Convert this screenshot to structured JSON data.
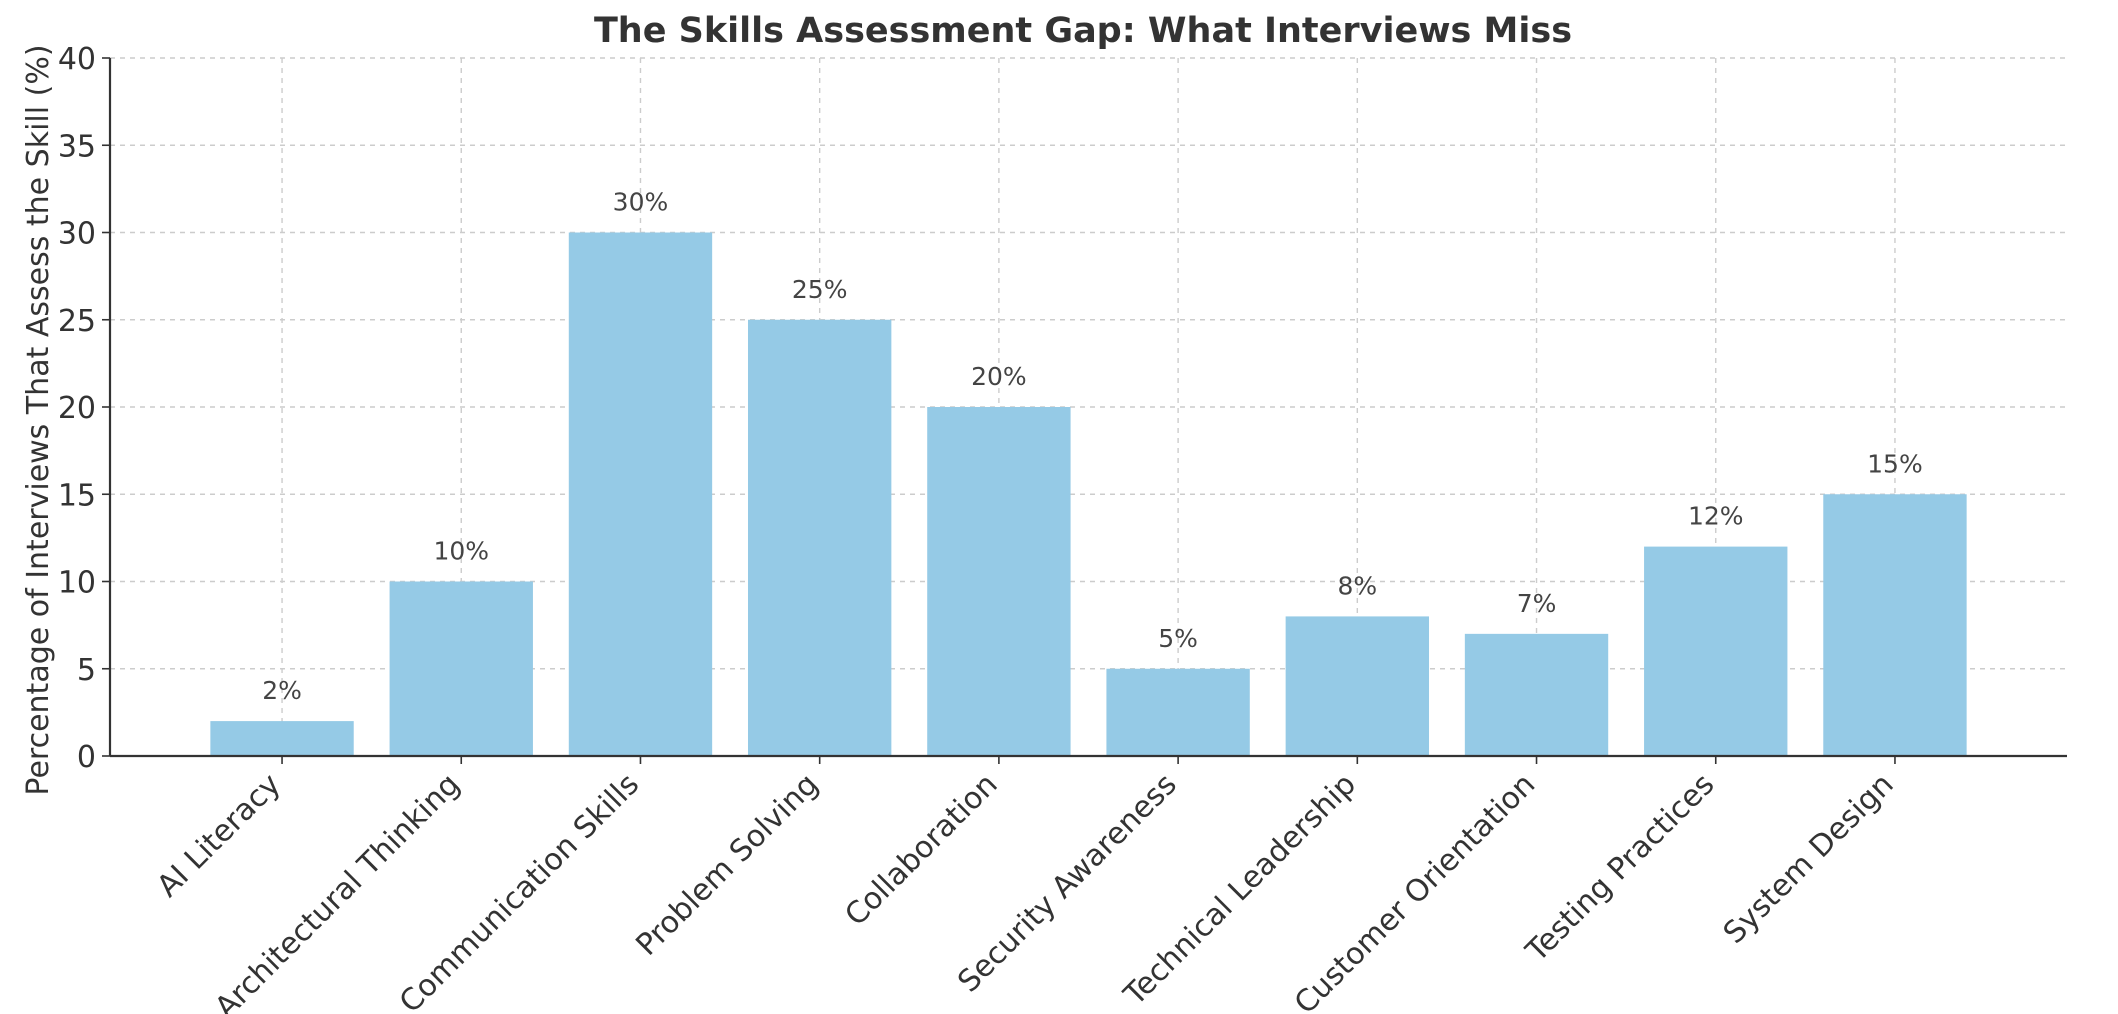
{
  "chart_data": {
    "type": "bar",
    "title": "The Skills Assessment Gap: What Interviews Miss",
    "xlabel": "",
    "ylabel": "Percentage of Interviews That Assess the Skill (%)",
    "categories": [
      "AI Literacy",
      "Architectural Thinking",
      "Communication Skills",
      "Problem Solving",
      "Collaboration",
      "Security Awareness",
      "Technical Leadership",
      "Customer Orientation",
      "Testing Practices",
      "System Design"
    ],
    "values": [
      2,
      10,
      30,
      25,
      20,
      5,
      8,
      7,
      12,
      15
    ],
    "data_labels": [
      "2%",
      "10%",
      "30%",
      "25%",
      "20%",
      "5%",
      "8%",
      "7%",
      "12%",
      "15%"
    ],
    "ylim": [
      0,
      40
    ],
    "yticks": [
      0,
      5,
      10,
      15,
      20,
      25,
      30,
      35,
      40
    ],
    "grid": true,
    "bar_color": "#95cae6"
  }
}
